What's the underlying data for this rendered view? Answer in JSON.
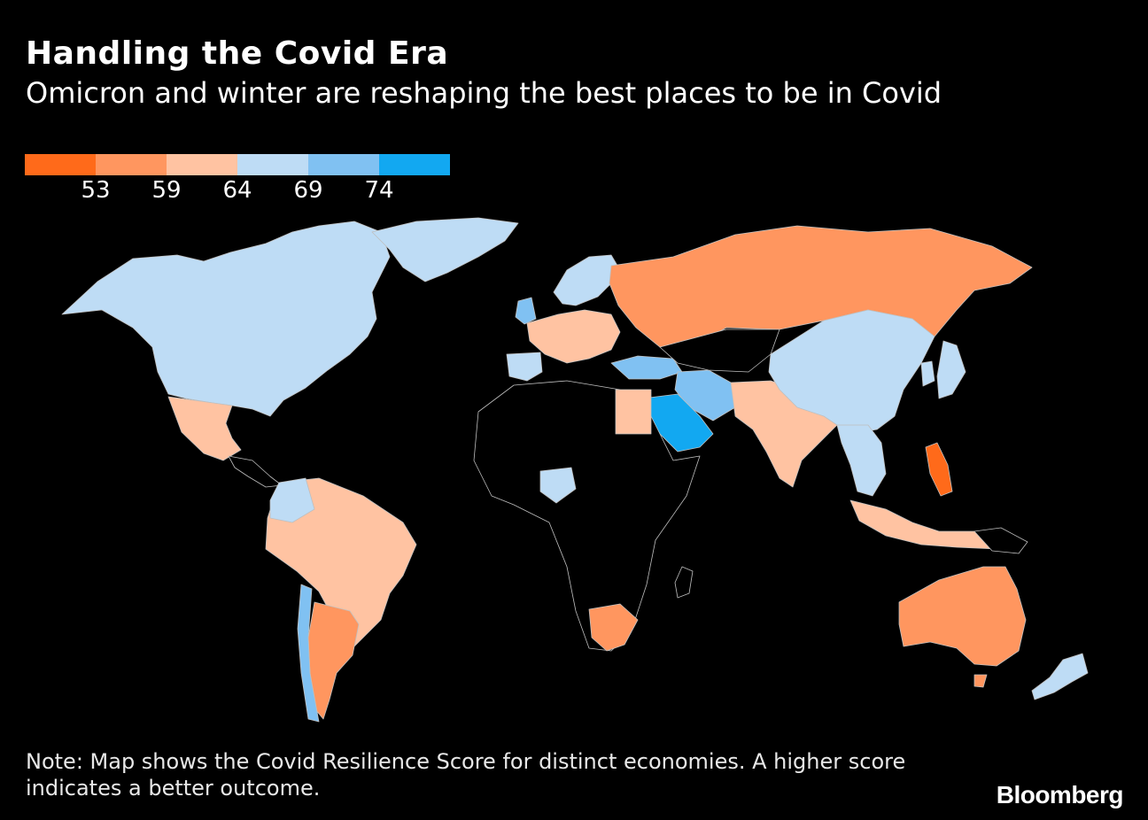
{
  "header": {
    "title": "Handling the Covid Era",
    "subtitle": "Omicron and winter are reshaping the best places to be in Covid"
  },
  "legend": {
    "colors": [
      "#ff6a1a",
      "#ff965f",
      "#ffc3a2",
      "#bedcf5",
      "#80c1f2",
      "#12a8f1"
    ],
    "labels": [
      "53",
      "59",
      "64",
      "69",
      "74"
    ]
  },
  "map": {
    "no_data_color": "#000000",
    "border_color": "#bfbfbf",
    "regions": [
      {
        "name": "North America (US/Canada)",
        "color": "#bedcf5"
      },
      {
        "name": "Mexico",
        "color": "#ffc3a2"
      },
      {
        "name": "South America",
        "color": "#ffc3a2"
      },
      {
        "name": "Colombia/Ecuador",
        "color": "#bedcf5"
      },
      {
        "name": "Argentina",
        "color": "#ff965f"
      },
      {
        "name": "Chile",
        "color": "#80c1f2"
      },
      {
        "name": "Russia",
        "color": "#ff965f"
      },
      {
        "name": "China",
        "color": "#bedcf5"
      },
      {
        "name": "India/Pakistan",
        "color": "#ffc3a2"
      },
      {
        "name": "Saudi Arabia",
        "color": "#12a8f1"
      },
      {
        "name": "Iran/Iraq",
        "color": "#80c1f2"
      },
      {
        "name": "Turkey",
        "color": "#80c1f2"
      },
      {
        "name": "Egypt",
        "color": "#ffc3a2"
      },
      {
        "name": "Nigeria",
        "color": "#bedcf5"
      },
      {
        "name": "South Africa",
        "color": "#ff965f"
      },
      {
        "name": "Australia",
        "color": "#ff965f"
      },
      {
        "name": "New Zealand",
        "color": "#bedcf5"
      },
      {
        "name": "Japan",
        "color": "#bedcf5"
      },
      {
        "name": "Philippines",
        "color": "#ff6a1a"
      },
      {
        "name": "Indonesia",
        "color": "#ffc3a2"
      },
      {
        "name": "Western Europe",
        "color": "#ffc3a2"
      },
      {
        "name": "Scandinavia",
        "color": "#bedcf5"
      },
      {
        "name": "Spain/Portugal",
        "color": "#bedcf5"
      }
    ]
  },
  "footer": {
    "note": "Note: Map shows the Covid Resilience Score for distinct economies. A higher score indicates a better outcome.",
    "brand": "Bloomberg"
  }
}
